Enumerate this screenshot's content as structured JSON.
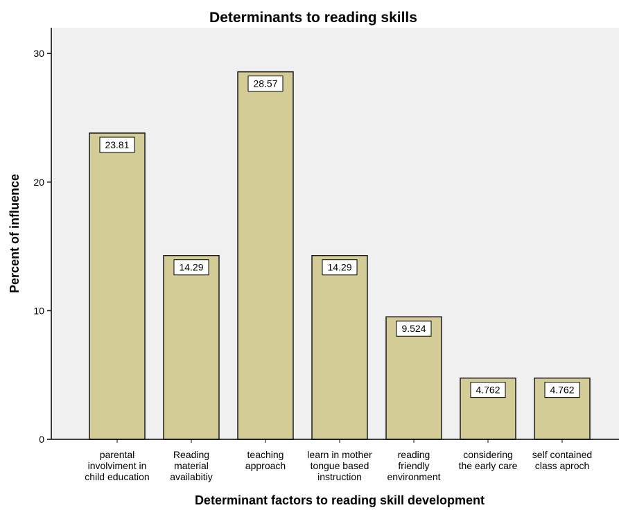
{
  "chart_data": {
    "type": "bar",
    "title": "Determinants to reading skills",
    "xlabel": "Determinant factors to reading skill development",
    "ylabel": "Percent of influence",
    "ylim": [
      0,
      32
    ],
    "yticks": [
      0,
      10,
      20,
      30
    ],
    "categories": [
      "parental involviment in child education",
      "Reading material availabitiy",
      "teaching approach",
      "learn in mother tongue based instruction",
      "reading friendly environment",
      "considering the early care",
      "self contained class aproch"
    ],
    "category_lines": [
      [
        "parental",
        "involviment in",
        "child education"
      ],
      [
        "Reading",
        "material",
        "availabitiy"
      ],
      [
        "teaching",
        "approach"
      ],
      [
        "learn in mother",
        "tongue based",
        "instruction"
      ],
      [
        "reading",
        "friendly",
        "environment"
      ],
      [
        "considering",
        "the early care"
      ],
      [
        "self contained",
        "class aproch"
      ]
    ],
    "values": [
      23.81,
      14.29,
      28.57,
      14.29,
      9.524,
      4.762,
      4.762
    ],
    "value_labels": [
      "23.81",
      "14.29",
      "28.57",
      "14.29",
      "9.524",
      "4.762",
      "4.762"
    ],
    "grid": false,
    "legend": "none",
    "colors": {
      "bar_fill": "#d4cc96",
      "bar_stroke": "#1a1a1a",
      "plot_background": "#f0f0f0",
      "axis": "#000000"
    }
  }
}
